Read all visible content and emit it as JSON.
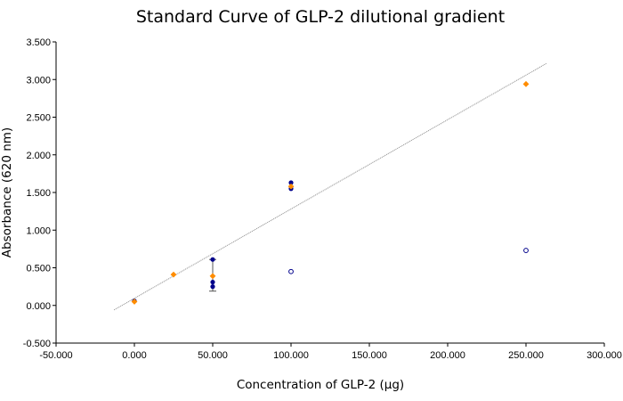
{
  "chart_data": {
    "type": "scatter",
    "title": "Standard Curve of GLP-2 dilutional gradient",
    "xlabel": "Concentration of GLP-2 (µg)",
    "ylabel": "Absorbance (620 nm)",
    "xlim": [
      -50,
      300
    ],
    "ylim": [
      -0.5,
      3.5
    ],
    "x_ticks": [
      -50,
      0,
      50,
      100,
      150,
      200,
      250,
      300
    ],
    "x_tick_labels": [
      "-50.000",
      "0.000",
      "50.000",
      "100.000",
      "150.000",
      "200.000",
      "250.000",
      "300.000"
    ],
    "y_ticks": [
      -0.5,
      0,
      0.5,
      1,
      1.5,
      2,
      2.5,
      3,
      3.5
    ],
    "y_tick_labels": [
      "-0.500",
      "0.000",
      "0.500",
      "1.000",
      "1.500",
      "2.000",
      "2.500",
      "3.000",
      "3.500"
    ],
    "grid": false,
    "legend": "none",
    "series": [
      {
        "marker": "filled-circle",
        "color": "#00008b",
        "points": [
          [
            0,
            0.06
          ],
          [
            50,
            0.61
          ],
          [
            50,
            0.31
          ],
          [
            50,
            0.25
          ],
          [
            100,
            1.63
          ],
          [
            100,
            1.55
          ]
        ]
      },
      {
        "marker": "open-circle",
        "color": "#00008b",
        "points": [
          [
            100,
            0.45
          ],
          [
            250,
            0.73
          ]
        ]
      },
      {
        "marker": "diamond",
        "color": "#ff8c00",
        "points": [
          [
            0,
            0.05
          ],
          [
            25,
            0.41
          ],
          [
            50,
            0.39
          ],
          [
            100,
            1.58
          ],
          [
            250,
            2.94
          ]
        ]
      }
    ],
    "error_bars": [
      {
        "x": 50,
        "low": 0.19,
        "high": 0.61
      }
    ],
    "trendline": {
      "style": "dotted",
      "color": "#999999",
      "x_range": [
        -13,
        263
      ],
      "slope": 0.01186,
      "intercept": 0.094
    }
  }
}
